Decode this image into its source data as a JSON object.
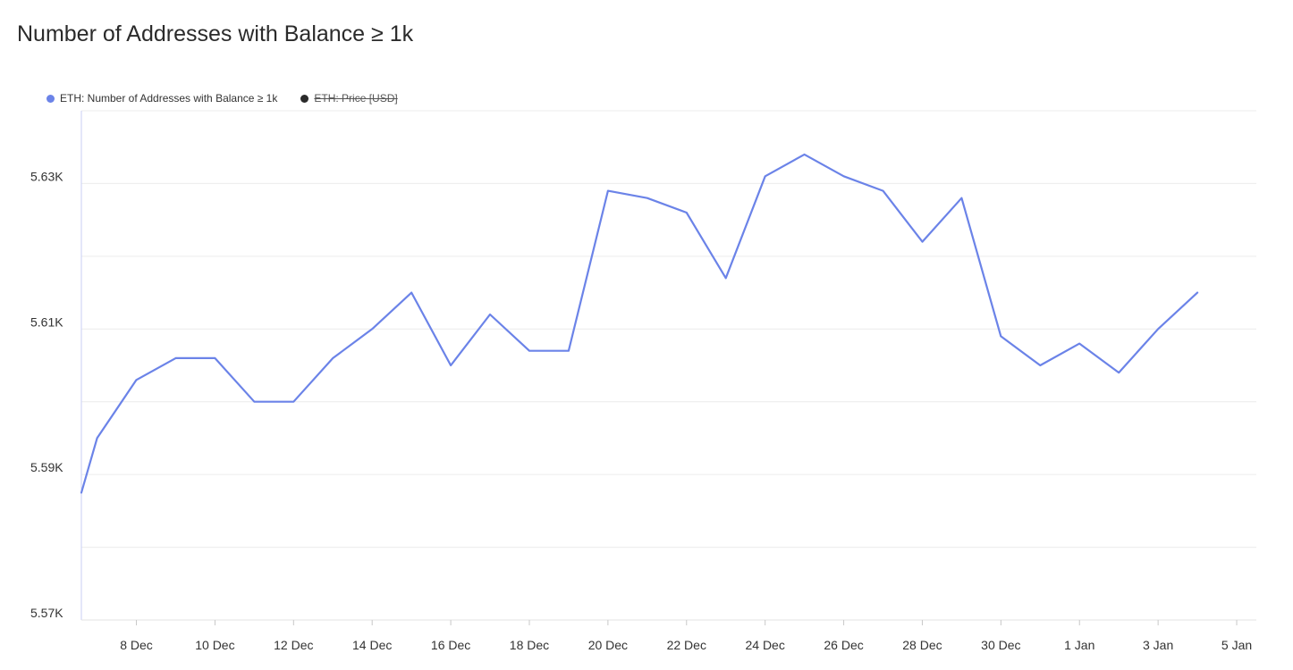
{
  "title": "Number of Addresses with Balance ≥ 1k",
  "legend": [
    {
      "label": "ETH: Number of Addresses with Balance ≥ 1k",
      "color": "#6b83e8",
      "hidden": false
    },
    {
      "label": "ETH: Price [USD]",
      "color": "#2a2a2a",
      "hidden": true
    }
  ],
  "chart_data": {
    "type": "line",
    "title": "Number of Addresses with Balance ≥ 1k",
    "xlabel": "",
    "ylabel": "",
    "ylim": [
      5570,
      5640
    ],
    "grid": true,
    "legend_position": "top-left",
    "y_ticks": [
      {
        "value": 5570,
        "label": "5.57K"
      },
      {
        "value": 5590,
        "label": "5.59K"
      },
      {
        "value": 5610,
        "label": "5.61K"
      },
      {
        "value": 5630,
        "label": "5.63K"
      }
    ],
    "x_ticks": [
      "8 Dec",
      "10 Dec",
      "12 Dec",
      "14 Dec",
      "16 Dec",
      "18 Dec",
      "20 Dec",
      "22 Dec",
      "24 Dec",
      "26 Dec",
      "28 Dec",
      "30 Dec",
      "1 Jan",
      "3 Jan",
      "5 Jan"
    ],
    "x_range": [
      "6.6 Dec",
      "5.5 Jan"
    ],
    "series": [
      {
        "name": "ETH: Number of Addresses with Balance ≥ 1k",
        "color": "#6b83e8",
        "x": [
          "6.6 Dec",
          "7 Dec",
          "8 Dec",
          "9 Dec",
          "10 Dec",
          "11 Dec",
          "12 Dec",
          "13 Dec",
          "14 Dec",
          "15 Dec",
          "16 Dec",
          "17 Dec",
          "18 Dec",
          "19 Dec",
          "20 Dec",
          "21 Dec",
          "22 Dec",
          "23 Dec",
          "24 Dec",
          "25 Dec",
          "26 Dec",
          "27 Dec",
          "28 Dec",
          "29 Dec",
          "30 Dec",
          "31 Dec",
          "1 Jan",
          "2 Jan",
          "3 Jan",
          "4 Jan"
        ],
        "values": [
          5587.5,
          5595,
          5603,
          5606,
          5606,
          5600,
          5600,
          5606,
          5610,
          5615,
          5605,
          5612,
          5607,
          5607,
          5629,
          5628,
          5626,
          5617,
          5631,
          5634,
          5631,
          5629,
          5622,
          5628,
          5609,
          5605,
          5608,
          5604,
          5610,
          5615
        ]
      }
    ]
  }
}
